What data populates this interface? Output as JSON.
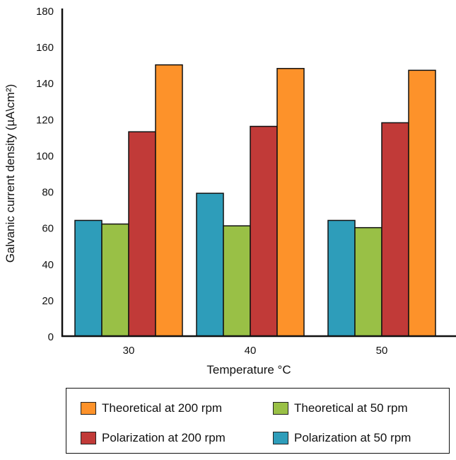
{
  "chart_data": {
    "type": "bar",
    "title": "",
    "xlabel": "Temperature °C",
    "ylabel": "Galvanic current density (µA\\cm²)",
    "categories": [
      "30",
      "40",
      "50"
    ],
    "ylim": [
      0,
      180
    ],
    "yticks": [
      0,
      20,
      40,
      60,
      80,
      100,
      120,
      140,
      160,
      180
    ],
    "grid": false,
    "legend_placement": "bottom",
    "series": [
      {
        "name": "Polarization at 50 rpm",
        "color": "#2e9dba",
        "values": [
          64,
          79,
          64
        ]
      },
      {
        "name": "Theoretical at 50 rpm",
        "color": "#99c046",
        "values": [
          62,
          61,
          60
        ]
      },
      {
        "name": "Polarization at 200 rpm",
        "color": "#c13a38",
        "values": [
          113,
          116,
          118
        ]
      },
      {
        "name": "Theoretical at 200 rpm",
        "color": "#fd922a",
        "values": [
          150,
          148,
          147
        ]
      }
    ],
    "legend_order": [
      3,
      1,
      2,
      0
    ]
  }
}
